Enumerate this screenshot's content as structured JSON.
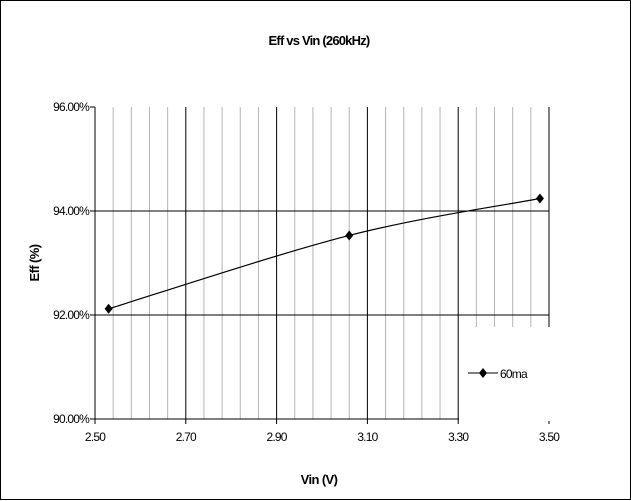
{
  "chart_data": {
    "type": "line",
    "title": "Eff vs Vin (260kHz)",
    "xlabel": "Vin (V)",
    "ylabel": "Eff (%)",
    "xlim": [
      2.5,
      3.5
    ],
    "ylim": [
      90,
      96
    ],
    "xticks": [
      2.5,
      2.7,
      2.9,
      3.1,
      3.3,
      3.5
    ],
    "xtick_labels": [
      "2.50",
      "2.70",
      "2.90",
      "3.10",
      "3.30",
      "3.50"
    ],
    "yticks": [
      90,
      92,
      94,
      96
    ],
    "ytick_labels": [
      "90.00%",
      "92.00%",
      "94.00%",
      "96.00%"
    ],
    "grid": true,
    "legend_position": "right",
    "series": [
      {
        "name": "60ma",
        "x": [
          2.53,
          3.06,
          3.48
        ],
        "y": [
          92.12,
          93.53,
          94.24
        ],
        "marker": "diamond",
        "color": "#000000"
      }
    ]
  }
}
